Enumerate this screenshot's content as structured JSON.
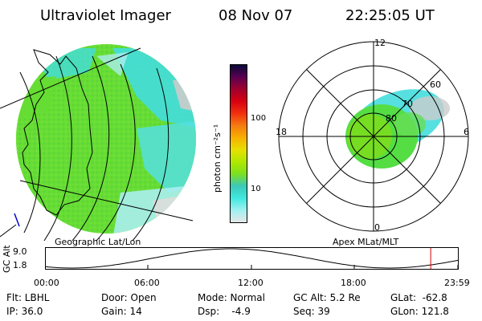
{
  "header": {
    "instrument": "Ultraviolet Imager",
    "date": "08 Nov 07",
    "time": "22:25:05 UT"
  },
  "colorbar": {
    "label": "photon cm⁻²s⁻¹",
    "ticks": [
      "100",
      "10"
    ],
    "colors": [
      "#0a0a3a",
      "#5a0050",
      "#a00030",
      "#d80010",
      "#f03010",
      "#f57a10",
      "#f7b000",
      "#e8e000",
      "#b0e800",
      "#7ce020",
      "#3cc8b8",
      "#40e8e0",
      "#a0f0f0",
      "#e6e6e6"
    ]
  },
  "geo_map": {
    "label": "Geographic Lat/Lon",
    "fill_color": "#66dd33",
    "cyan_color": "#44dddd"
  },
  "polar_map": {
    "label": "Apex MLat/MLT",
    "mlt_labels": {
      "top": "12",
      "left": "18",
      "right": "6",
      "bottom": "0"
    },
    "mlat_labels": [
      "60",
      "70",
      "80"
    ]
  },
  "altitude_plot": {
    "ylabel": "GC Alt",
    "y_ticks": [
      "9.0",
      "1.8"
    ],
    "x_ticks": [
      "00:00",
      "06:00",
      "12:00",
      "18:00",
      "23:59"
    ],
    "current_time_marker_hours": 22.42,
    "marker_color": "#dd0000"
  },
  "info": {
    "flt": "Flt: LBHL",
    "ip": "IP: 36.0",
    "door": "Door: Open",
    "gain": "Gain: 14",
    "mode": "Mode: Normal",
    "dsp": "Dsp:    -4.9",
    "gc_alt": "GC Alt: 5.2 Re",
    "seq": "Seq: 39",
    "glat": "GLat:  -62.8",
    "glon": "GLon: 121.8"
  }
}
